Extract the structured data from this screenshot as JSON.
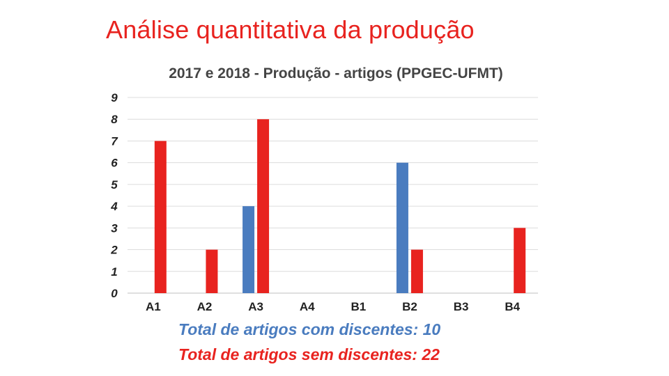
{
  "slide": {
    "title": "Análise quantitativa da produção"
  },
  "chart_data": {
    "type": "bar",
    "title": "2017 e 2018 - Produção - artigos (PPGEC-UFMT)",
    "categories": [
      "A1",
      "A2",
      "A3",
      "A4",
      "B1",
      "B2",
      "B3",
      "B4"
    ],
    "y_ticks": [
      "0",
      "1",
      "2",
      "3",
      "4",
      "5",
      "6",
      "7",
      "8",
      "9"
    ],
    "ylim": [
      0,
      9
    ],
    "grid": true,
    "series": [
      {
        "name": "Total de artigos com discentes",
        "color": "#4a7cbf",
        "values": [
          0,
          0,
          4,
          0,
          0,
          6,
          0,
          0
        ]
      },
      {
        "name": "Total de artigos sem discentes",
        "color": "#e8231f",
        "values": [
          7,
          2,
          8,
          0,
          0,
          2,
          0,
          3
        ]
      }
    ],
    "annotations": {
      "with_students": "Total de artigos com discentes: 10",
      "without_students": "Total de artigos sem discentes: 22"
    }
  }
}
